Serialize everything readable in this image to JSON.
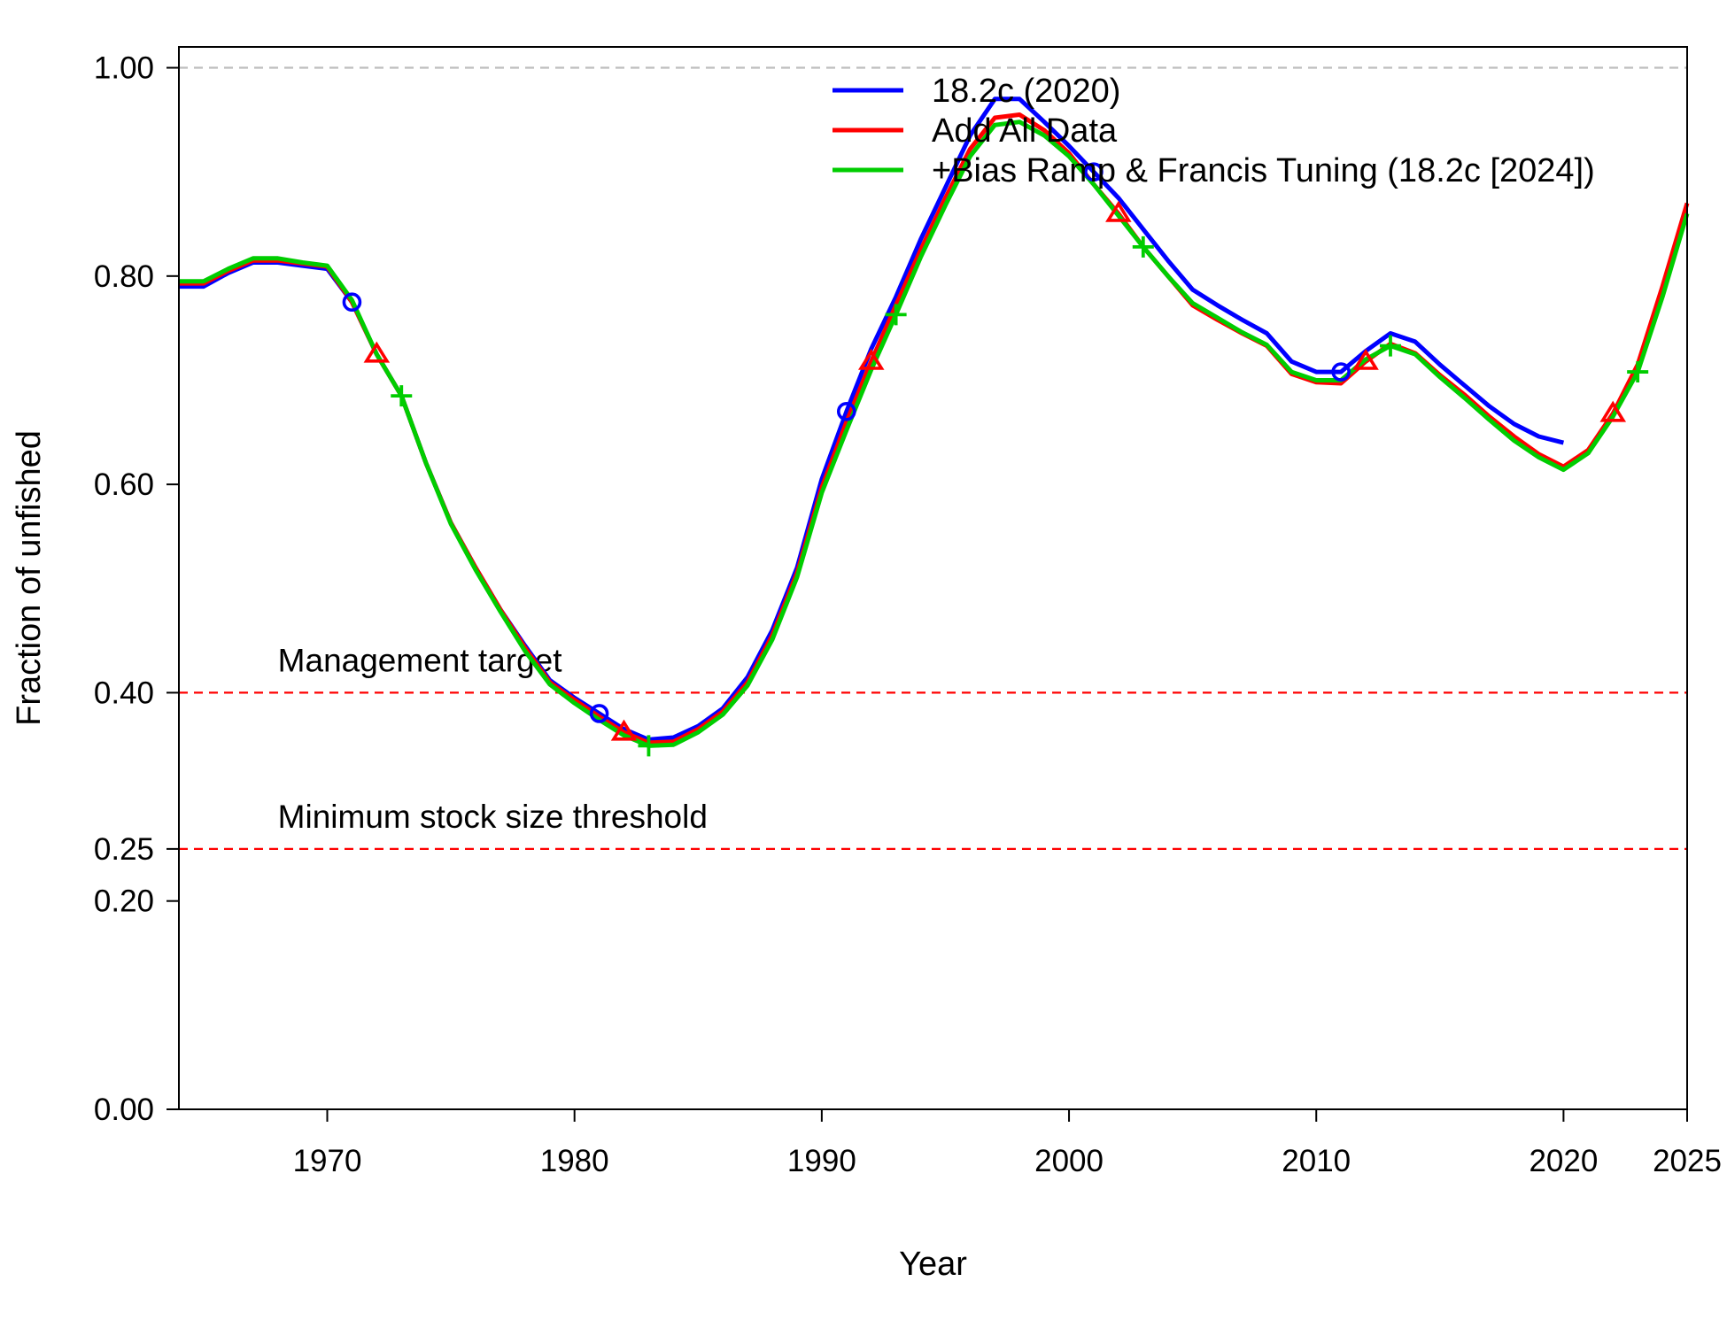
{
  "chart_data": {
    "type": "line",
    "title": "",
    "xlabel": "Year",
    "ylabel": "Fraction of unfished",
    "xlim": [
      1964,
      2025
    ],
    "ylim": [
      0,
      1.02
    ],
    "x_ticks": [
      1970,
      1980,
      1990,
      2000,
      2010,
      2020,
      2025
    ],
    "x_tick_labels": [
      "1970",
      "1980",
      "1990",
      "2000",
      "2010",
      "2020",
      "2025"
    ],
    "y_ticks": [
      0,
      0.2,
      0.25,
      0.4,
      0.6,
      0.8,
      1.0
    ],
    "y_tick_labels": [
      "0.00",
      "0.20",
      "0.25",
      "0.40",
      "0.60",
      "0.80",
      "1.00"
    ],
    "grid": false,
    "legend_position": "top-center",
    "reference_lines": [
      {
        "y": 1.0,
        "color": "#bebebe",
        "style": "dashed",
        "label": ""
      },
      {
        "y": 0.4,
        "color": "#ff0000",
        "style": "dashed",
        "label": "Management target"
      },
      {
        "y": 0.25,
        "color": "#ff0000",
        "style": "dashed",
        "label": "Minimum stock size threshold"
      }
    ],
    "series": [
      {
        "name": "18.2c (2020)",
        "color": "#0000ff",
        "marker": "circle",
        "marker_years": [
          1971,
          1981,
          1991,
          2001,
          2011
        ],
        "x": [
          1964,
          1965,
          1966,
          1967,
          1968,
          1969,
          1970,
          1971,
          1972,
          1973,
          1974,
          1975,
          1976,
          1977,
          1978,
          1979,
          1980,
          1981,
          1982,
          1983,
          1984,
          1985,
          1986,
          1987,
          1988,
          1989,
          1990,
          1991,
          1992,
          1993,
          1994,
          1995,
          1996,
          1997,
          1998,
          1999,
          2000,
          2001,
          2002,
          2003,
          2004,
          2005,
          2006,
          2007,
          2008,
          2009,
          2010,
          2011,
          2012,
          2013,
          2014,
          2015,
          2016,
          2017,
          2018,
          2019,
          2020
        ],
        "y": [
          0.79,
          0.79,
          0.803,
          0.813,
          0.813,
          0.81,
          0.807,
          0.775,
          0.725,
          0.685,
          0.62,
          0.563,
          0.52,
          0.48,
          0.445,
          0.412,
          0.395,
          0.38,
          0.365,
          0.355,
          0.357,
          0.368,
          0.385,
          0.415,
          0.46,
          0.52,
          0.605,
          0.67,
          0.73,
          0.78,
          0.835,
          0.885,
          0.935,
          0.97,
          0.97,
          0.948,
          0.925,
          0.9,
          0.875,
          0.845,
          0.815,
          0.787,
          0.772,
          0.758,
          0.745,
          0.718,
          0.708,
          0.708,
          0.728,
          0.745,
          0.737,
          0.715,
          0.695,
          0.675,
          0.658,
          0.646,
          0.64
        ]
      },
      {
        "name": "Add All Data",
        "color": "#ff0000",
        "marker": "triangle",
        "marker_years": [
          1972,
          1982,
          1992,
          2002,
          2012,
          2022
        ],
        "x": [
          1964,
          1965,
          1966,
          1967,
          1968,
          1969,
          1970,
          1971,
          1972,
          1973,
          1974,
          1975,
          1976,
          1977,
          1978,
          1979,
          1980,
          1981,
          1982,
          1983,
          1984,
          1985,
          1986,
          1987,
          1988,
          1989,
          1990,
          1991,
          1992,
          1993,
          1994,
          1995,
          1996,
          1997,
          1998,
          1999,
          2000,
          2001,
          2002,
          2003,
          2004,
          2005,
          2006,
          2007,
          2008,
          2009,
          2010,
          2011,
          2012,
          2013,
          2014,
          2015,
          2016,
          2017,
          2018,
          2019,
          2020,
          2021,
          2022,
          2023,
          2024,
          2025
        ],
        "y": [
          0.793,
          0.793,
          0.805,
          0.815,
          0.815,
          0.812,
          0.809,
          0.775,
          0.725,
          0.685,
          0.62,
          0.563,
          0.52,
          0.48,
          0.443,
          0.41,
          0.393,
          0.377,
          0.362,
          0.352,
          0.353,
          0.365,
          0.382,
          0.41,
          0.455,
          0.515,
          0.597,
          0.66,
          0.718,
          0.772,
          0.825,
          0.875,
          0.922,
          0.952,
          0.955,
          0.94,
          0.918,
          0.888,
          0.86,
          0.828,
          0.8,
          0.772,
          0.758,
          0.745,
          0.733,
          0.706,
          0.698,
          0.697,
          0.718,
          0.735,
          0.726,
          0.705,
          0.686,
          0.665,
          0.646,
          0.629,
          0.617,
          0.633,
          0.668,
          0.715,
          0.79,
          0.87
        ]
      },
      {
        "name": "+Bias Ramp & Francis Tuning (18.2c [2024])",
        "color": "#00cd00",
        "marker": "plus",
        "marker_years": [
          1973,
          1983,
          1993,
          2003,
          2013,
          2023
        ],
        "x": [
          1964,
          1965,
          1966,
          1967,
          1968,
          1969,
          1970,
          1971,
          1972,
          1973,
          1974,
          1975,
          1976,
          1977,
          1978,
          1979,
          1980,
          1981,
          1982,
          1983,
          1984,
          1985,
          1986,
          1987,
          1988,
          1989,
          1990,
          1991,
          1992,
          1993,
          1994,
          1995,
          1996,
          1997,
          1998,
          1999,
          2000,
          2001,
          2002,
          2003,
          2004,
          2005,
          2006,
          2007,
          2008,
          2009,
          2010,
          2011,
          2012,
          2013,
          2014,
          2015,
          2016,
          2017,
          2018,
          2019,
          2020,
          2021,
          2022,
          2023,
          2024,
          2025
        ],
        "y": [
          0.795,
          0.795,
          0.807,
          0.817,
          0.817,
          0.813,
          0.81,
          0.777,
          0.725,
          0.685,
          0.62,
          0.562,
          0.518,
          0.478,
          0.44,
          0.408,
          0.39,
          0.374,
          0.359,
          0.349,
          0.35,
          0.362,
          0.379,
          0.407,
          0.451,
          0.511,
          0.592,
          0.652,
          0.71,
          0.763,
          0.818,
          0.868,
          0.915,
          0.945,
          0.948,
          0.935,
          0.915,
          0.888,
          0.858,
          0.828,
          0.8,
          0.774,
          0.76,
          0.746,
          0.734,
          0.708,
          0.7,
          0.7,
          0.72,
          0.733,
          0.725,
          0.703,
          0.683,
          0.662,
          0.642,
          0.626,
          0.614,
          0.63,
          0.665,
          0.708,
          0.78,
          0.86
        ]
      }
    ]
  }
}
